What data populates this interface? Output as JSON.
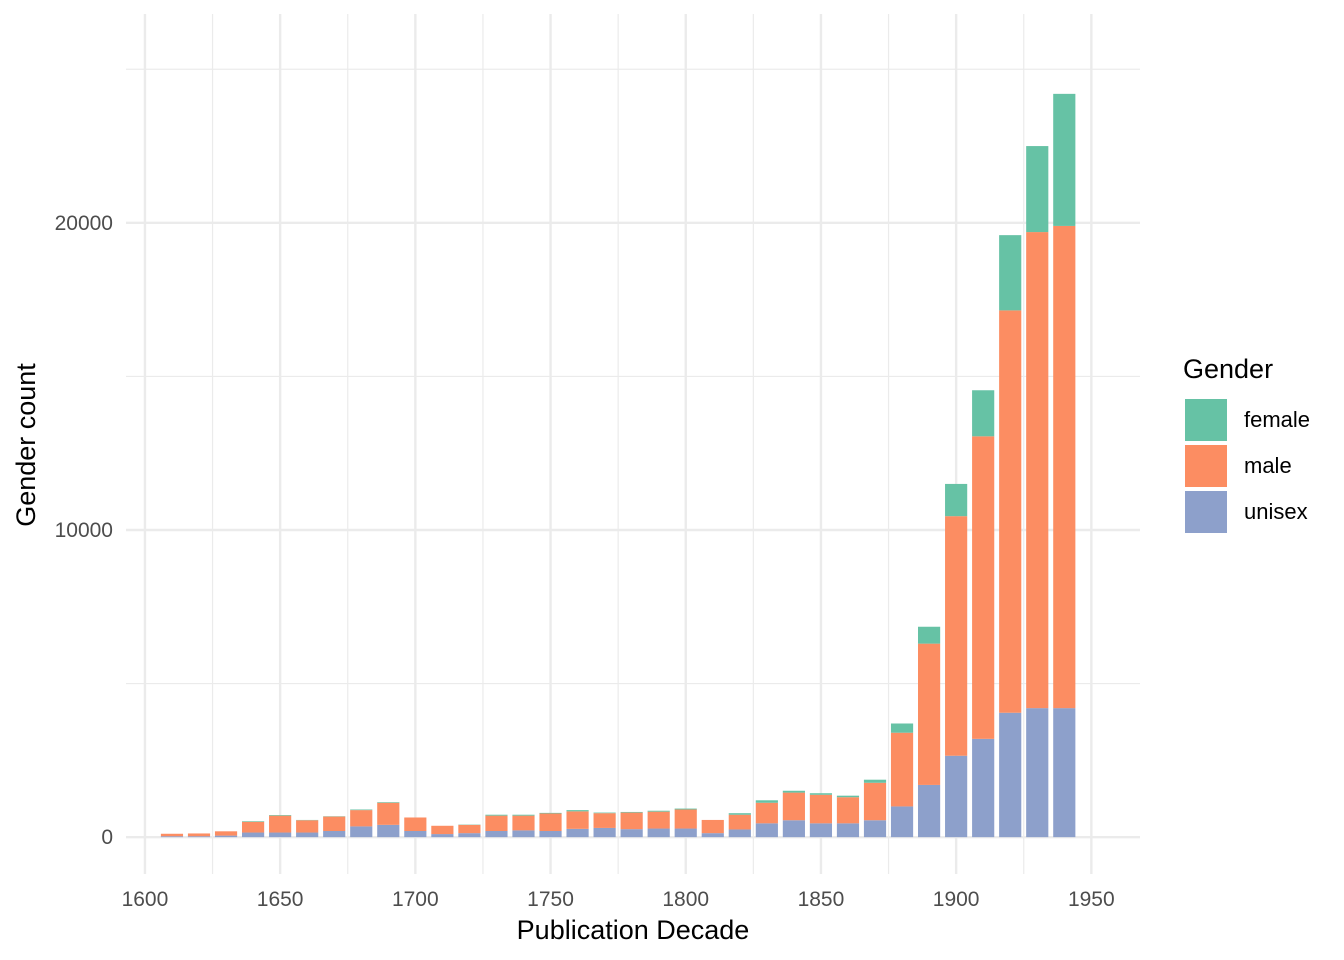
{
  "chart_data": {
    "type": "bar",
    "stacked": true,
    "title": "",
    "xlabel": "Publication Decade",
    "ylabel": "Gender count",
    "xlim": [
      1593,
      1968
    ],
    "ylim": [
      -1200,
      26800
    ],
    "x_ticks": [
      1600,
      1650,
      1700,
      1750,
      1800,
      1850,
      1900,
      1950
    ],
    "y_ticks": [
      0,
      10000,
      20000
    ],
    "grid": true,
    "legend": {
      "title": "Gender",
      "placement": "right",
      "entries": [
        "female",
        "male",
        "unisex"
      ]
    },
    "x": [
      1610,
      1620,
      1630,
      1640,
      1650,
      1660,
      1670,
      1680,
      1690,
      1700,
      1710,
      1720,
      1730,
      1740,
      1750,
      1760,
      1770,
      1780,
      1790,
      1800,
      1810,
      1820,
      1830,
      1840,
      1850,
      1860,
      1870,
      1880,
      1890,
      1900,
      1910,
      1920,
      1930,
      1940
    ],
    "series": [
      {
        "name": "unisex",
        "color": "#8da0cb",
        "values": [
          30,
          30,
          50,
          150,
          150,
          150,
          200,
          350,
          400,
          200,
          100,
          130,
          200,
          220,
          200,
          270,
          300,
          260,
          280,
          280,
          130,
          250,
          450,
          550,
          450,
          450,
          550,
          1000,
          1700,
          2650,
          3200,
          4050,
          4200,
          4200
        ]
      },
      {
        "name": "male",
        "color": "#fc8d62",
        "values": [
          80,
          90,
          140,
          350,
          550,
          400,
          470,
          530,
          720,
          440,
          270,
          270,
          500,
          480,
          570,
          570,
          480,
          540,
          550,
          620,
          430,
          480,
          670,
          900,
          930,
          850,
          1220,
          2400,
          4600,
          7800,
          9850,
          13100,
          15500,
          15700
        ]
      },
      {
        "name": "female",
        "color": "#66c2a5",
        "values": [
          0,
          0,
          0,
          20,
          20,
          10,
          10,
          20,
          20,
          0,
          0,
          10,
          30,
          30,
          20,
          40,
          20,
          20,
          30,
          30,
          0,
          50,
          80,
          60,
          50,
          50,
          100,
          300,
          550,
          1050,
          1500,
          2450,
          2800,
          4300
        ]
      }
    ]
  }
}
